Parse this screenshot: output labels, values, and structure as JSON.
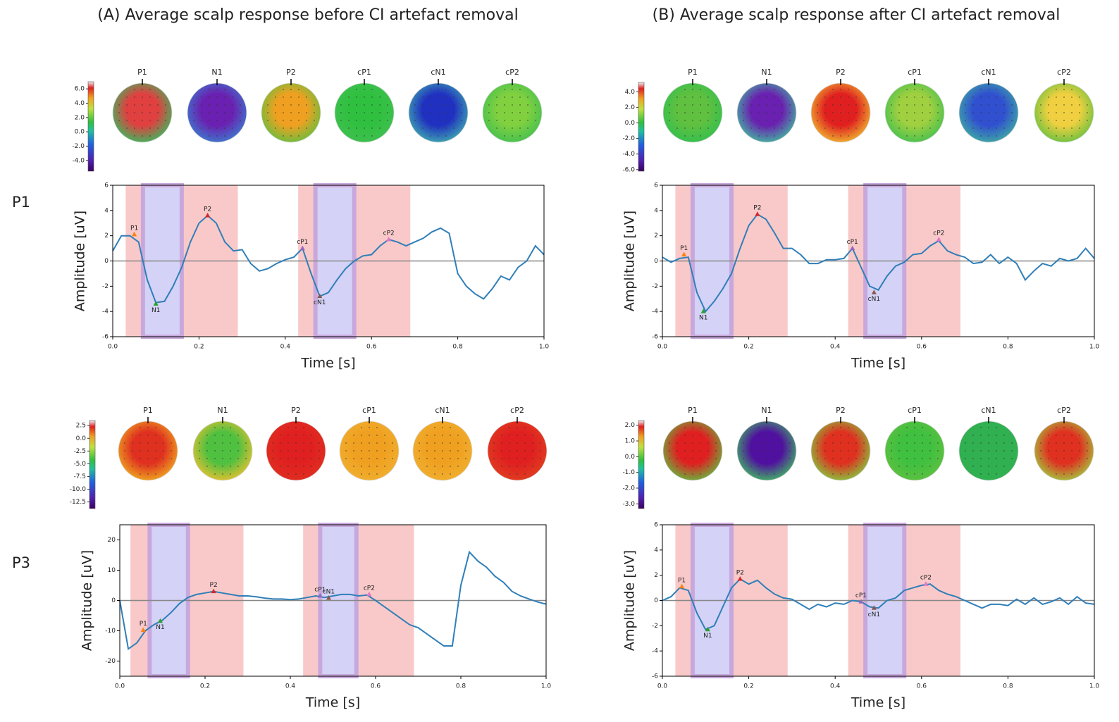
{
  "chart_data": [
    {
      "type": "line",
      "title": "(A) Average scalp response before CI artefact removal",
      "row_label": "P1",
      "topomap_labels": [
        "P1",
        "N1",
        "P2",
        "cP1",
        "cN1",
        "cP2"
      ],
      "topomap_colors": [
        [
          "#e04040",
          "#30c060"
        ],
        [
          "#6a20b0",
          "#3a80d0"
        ],
        [
          "#f0a020",
          "#60c040"
        ],
        [
          "#30c040",
          "#40c050"
        ],
        [
          "#2030c0",
          "#40b0b0"
        ],
        [
          "#80d040",
          "#40c050"
        ]
      ],
      "colorbar_lim": [
        -5.5,
        7
      ],
      "colorbar_ticks": [
        {
          "value": 6,
          "label": "6.0"
        },
        {
          "value": 4,
          "label": "4.0"
        },
        {
          "value": 2,
          "label": "2.0"
        },
        {
          "value": 0,
          "label": "0.0"
        },
        {
          "value": -2,
          "label": "-2.0"
        },
        {
          "value": -4,
          "label": "-4.0"
        }
      ],
      "xlabel": "Time [s]",
      "ylabel": "Amplitude [uV]",
      "xlim": [
        0,
        1
      ],
      "ylim": [
        -6,
        6
      ],
      "xticks": [
        {
          "value": 0,
          "label": "0.0"
        },
        {
          "value": 0.2,
          "label": "0.2"
        },
        {
          "value": 0.4,
          "label": "0.4"
        },
        {
          "value": 0.6,
          "label": "0.6"
        },
        {
          "value": 0.8,
          "label": "0.8"
        },
        {
          "value": 1,
          "label": "1.0"
        }
      ],
      "yticks": [
        -6,
        -4,
        -2,
        0,
        2,
        4,
        6
      ],
      "regions": [
        {
          "xlim": [
            0.03,
            0.29
          ],
          "color": "#f9c9c9"
        },
        {
          "xlim": [
            0.07,
            0.16
          ],
          "color": "#d4d2f6"
        },
        {
          "xlim": [
            0.43,
            0.69
          ],
          "color": "#f9c9c9"
        },
        {
          "xlim": [
            0.47,
            0.56
          ],
          "color": "#d4d2f6"
        }
      ],
      "x": [
        0,
        0.02,
        0.04,
        0.06,
        0.08,
        0.1,
        0.12,
        0.14,
        0.16,
        0.18,
        0.2,
        0.22,
        0.24,
        0.26,
        0.28,
        0.3,
        0.32,
        0.34,
        0.36,
        0.38,
        0.4,
        0.42,
        0.44,
        0.46,
        0.48,
        0.5,
        0.52,
        0.54,
        0.56,
        0.58,
        0.6,
        0.62,
        0.64,
        0.66,
        0.68,
        0.7,
        0.72,
        0.74,
        0.76,
        0.78,
        0.8,
        0.82,
        0.84,
        0.86,
        0.88,
        0.9,
        0.92,
        0.94,
        0.96,
        0.98,
        1
      ],
      "series": [
        {
          "color": "#2f7fb8",
          "values": [
            0.8,
            2.0,
            2.0,
            1.5,
            -1.5,
            -3.3,
            -3.2,
            -2.0,
            -0.5,
            1.5,
            3.0,
            3.6,
            3.0,
            1.5,
            0.8,
            0.9,
            -0.2,
            -0.8,
            -0.6,
            -0.2,
            0.1,
            0.3,
            1.0,
            -1.0,
            -2.8,
            -2.5,
            -1.5,
            -0.6,
            0,
            0.4,
            0.5,
            1.2,
            1.7,
            1.5,
            1.2,
            1.5,
            1.8,
            2.3,
            2.6,
            2.2,
            -1.0,
            -2.0,
            -2.6,
            -3.0,
            -2.2,
            -1.2,
            -1.5,
            -0.5,
            0,
            1.2,
            0.5
          ]
        }
      ],
      "peaks": [
        {
          "label": "P1",
          "x": 0.05,
          "y": 2.1,
          "color": "#ff7f0e"
        },
        {
          "label": "N1",
          "x": 0.1,
          "y": -3.4,
          "color": "#2ca02c"
        },
        {
          "label": "P2",
          "x": 0.22,
          "y": 3.6,
          "color": "#d62728"
        },
        {
          "label": "cP1",
          "x": 0.44,
          "y": 1.0,
          "color": "#9467bd"
        },
        {
          "label": "cN1",
          "x": 0.48,
          "y": -2.8,
          "color": "#8c564b"
        },
        {
          "label": "cP2",
          "x": 0.64,
          "y": 1.7,
          "color": "#e377c2"
        }
      ]
    },
    {
      "type": "line",
      "title": "(B) Average scalp response after CI artefact removal",
      "topomap_labels": [
        "P1",
        "N1",
        "P2",
        "cP1",
        "cN1",
        "cP2"
      ],
      "topomap_colors": [
        [
          "#60c040",
          "#30c050"
        ],
        [
          "#6a20b0",
          "#40c0a0"
        ],
        [
          "#e02020",
          "#f0c030"
        ],
        [
          "#a0d040",
          "#40c050"
        ],
        [
          "#3050d0",
          "#40b0a0"
        ],
        [
          "#f0d040",
          "#60c040"
        ]
      ],
      "colorbar_lim": [
        -6.2,
        5.2
      ],
      "colorbar_ticks": [
        {
          "value": 4,
          "label": "4.0"
        },
        {
          "value": 2,
          "label": "2.0"
        },
        {
          "value": 0,
          "label": "0.0"
        },
        {
          "value": -2,
          "label": "-2.0"
        },
        {
          "value": -4,
          "label": "-4.0"
        },
        {
          "value": -6,
          "label": "-6.0"
        }
      ],
      "xlabel": "Time [s]",
      "ylabel": "Amplitude [uV]",
      "xlim": [
        0,
        1
      ],
      "ylim": [
        -6,
        6
      ],
      "xticks": [
        {
          "value": 0,
          "label": "0.0"
        },
        {
          "value": 0.2,
          "label": "0.2"
        },
        {
          "value": 0.4,
          "label": "0.4"
        },
        {
          "value": 0.6,
          "label": "0.6"
        },
        {
          "value": 0.8,
          "label": "0.8"
        },
        {
          "value": 1,
          "label": "1.0"
        }
      ],
      "yticks": [
        -6,
        -4,
        -2,
        0,
        2,
        4,
        6
      ],
      "regions": [
        {
          "xlim": [
            0.03,
            0.29
          ],
          "color": "#f9c9c9"
        },
        {
          "xlim": [
            0.07,
            0.16
          ],
          "color": "#d4d2f6"
        },
        {
          "xlim": [
            0.43,
            0.69
          ],
          "color": "#f9c9c9"
        },
        {
          "xlim": [
            0.47,
            0.56
          ],
          "color": "#d4d2f6"
        }
      ],
      "x": [
        0,
        0.02,
        0.04,
        0.06,
        0.08,
        0.1,
        0.12,
        0.14,
        0.16,
        0.18,
        0.2,
        0.22,
        0.24,
        0.26,
        0.28,
        0.3,
        0.32,
        0.34,
        0.36,
        0.38,
        0.4,
        0.42,
        0.44,
        0.46,
        0.48,
        0.5,
        0.52,
        0.54,
        0.56,
        0.58,
        0.6,
        0.62,
        0.64,
        0.66,
        0.68,
        0.7,
        0.72,
        0.74,
        0.76,
        0.78,
        0.8,
        0.82,
        0.84,
        0.86,
        0.88,
        0.9,
        0.92,
        0.94,
        0.96,
        0.98,
        1
      ],
      "series": [
        {
          "color": "#2f7fb8",
          "values": [
            0.3,
            -0.1,
            0.2,
            0.3,
            -2.5,
            -4.0,
            -3.2,
            -2.2,
            -1.0,
            1.0,
            2.8,
            3.7,
            3.3,
            2.2,
            1.0,
            1.0,
            0.5,
            -0.2,
            -0.2,
            0.1,
            0.1,
            0.2,
            1.0,
            -0.5,
            -2.0,
            -2.3,
            -1.2,
            -0.4,
            -0.1,
            0.5,
            0.6,
            1.2,
            1.6,
            0.8,
            0.5,
            0.3,
            -0.2,
            -0.1,
            0.5,
            -0.2,
            0.3,
            -0.2,
            -1.5,
            -0.8,
            -0.2,
            -0.4,
            0.2,
            0,
            0.2,
            1.0,
            0.2
          ]
        }
      ],
      "peaks": [
        {
          "label": "P1",
          "x": 0.05,
          "y": 0.5,
          "color": "#ff7f0e"
        },
        {
          "label": "N1",
          "x": 0.095,
          "y": -4.0,
          "color": "#2ca02c"
        },
        {
          "label": "P2",
          "x": 0.22,
          "y": 3.7,
          "color": "#d62728"
        },
        {
          "label": "cP1",
          "x": 0.44,
          "y": 1.0,
          "color": "#9467bd"
        },
        {
          "label": "cN1",
          "x": 0.49,
          "y": -2.5,
          "color": "#8c564b"
        },
        {
          "label": "cP2",
          "x": 0.64,
          "y": 1.7,
          "color": "#e377c2"
        }
      ]
    },
    {
      "type": "line",
      "row_label": "P3",
      "topomap_labels": [
        "P1",
        "N1",
        "P2",
        "cP1",
        "cN1",
        "cP2"
      ],
      "topomap_colors": [
        [
          "#e03020",
          "#f0b020"
        ],
        [
          "#50c040",
          "#f0c030"
        ],
        [
          "#e02020",
          "#e03020"
        ],
        [
          "#f0a020",
          "#f0b030"
        ],
        [
          "#f0a020",
          "#f0b030"
        ],
        [
          "#e02020",
          "#e04020"
        ]
      ],
      "colorbar_lim": [
        -13.8,
        3.5
      ],
      "colorbar_ticks": [
        {
          "value": 2.5,
          "label": "2.5"
        },
        {
          "value": 0,
          "label": "0.0"
        },
        {
          "value": -2.5,
          "label": "-2.5"
        },
        {
          "value": -5,
          "label": "-5.0"
        },
        {
          "value": -7.5,
          "label": "-7.5"
        },
        {
          "value": -10,
          "label": "-10.0"
        },
        {
          "value": -12.5,
          "label": "-12.5"
        }
      ],
      "xlabel": "Time [s]",
      "ylabel": "Amplitude [uV]",
      "xlim": [
        0,
        1
      ],
      "ylim": [
        -25,
        25
      ],
      "xticks": [
        {
          "value": 0,
          "label": "0.0"
        },
        {
          "value": 0.2,
          "label": "0.2"
        },
        {
          "value": 0.4,
          "label": "0.4"
        },
        {
          "value": 0.6,
          "label": "0.6"
        },
        {
          "value": 0.8,
          "label": "0.8"
        },
        {
          "value": 1,
          "label": "1.0"
        }
      ],
      "yticks": [
        -20,
        -10,
        0,
        10,
        20
      ],
      "regions": [
        {
          "xlim": [
            0.025,
            0.29
          ],
          "color": "#f9c9c9"
        },
        {
          "xlim": [
            0.07,
            0.16
          ],
          "color": "#d4d2f6"
        },
        {
          "xlim": [
            0.43,
            0.69
          ],
          "color": "#f9c9c9"
        },
        {
          "xlim": [
            0.47,
            0.555
          ],
          "color": "#d4d2f6"
        }
      ],
      "x": [
        0,
        0.02,
        0.04,
        0.06,
        0.08,
        0.1,
        0.12,
        0.14,
        0.16,
        0.18,
        0.2,
        0.22,
        0.24,
        0.26,
        0.28,
        0.3,
        0.32,
        0.34,
        0.36,
        0.38,
        0.4,
        0.42,
        0.44,
        0.46,
        0.48,
        0.5,
        0.52,
        0.54,
        0.56,
        0.58,
        0.6,
        0.62,
        0.64,
        0.66,
        0.68,
        0.7,
        0.72,
        0.74,
        0.76,
        0.78,
        0.8,
        0.82,
        0.84,
        0.86,
        0.88,
        0.9,
        0.92,
        0.94,
        0.96,
        0.98,
        1
      ],
      "series": [
        {
          "color": "#2f7fb8",
          "values": [
            0,
            -16,
            -14,
            -10,
            -8,
            -6.5,
            -4,
            -1,
            1,
            2,
            2.5,
            3,
            2.5,
            2,
            1.5,
            1.5,
            1.2,
            0.8,
            0.5,
            0.5,
            0.3,
            0.5,
            1,
            1.5,
            1,
            1.5,
            2,
            2,
            1.5,
            1.8,
            0,
            -2,
            -4,
            -6,
            -8,
            -9,
            -11,
            -13,
            -15,
            -15,
            5,
            16,
            13,
            11,
            8,
            6,
            3,
            1.5,
            0.5,
            -0.5,
            -1.2
          ]
        }
      ],
      "peaks": [
        {
          "label": "P1",
          "x": 0.055,
          "y": -9.8,
          "color": "#ff7f0e"
        },
        {
          "label": "N1",
          "x": 0.095,
          "y": -6.8,
          "color": "#2ca02c"
        },
        {
          "label": "P2",
          "x": 0.22,
          "y": 3.0,
          "color": "#d62728"
        },
        {
          "label": "cP1",
          "x": 0.47,
          "y": 1.5,
          "color": "#9467bd"
        },
        {
          "label": "cN1",
          "x": 0.49,
          "y": 0.8,
          "color": "#8c564b"
        },
        {
          "label": "cP2",
          "x": 0.585,
          "y": 2.0,
          "color": "#e377c2"
        }
      ]
    },
    {
      "type": "line",
      "topomap_labels": [
        "P1",
        "N1",
        "P2",
        "cP1",
        "cN1",
        "cP2"
      ],
      "topomap_colors": [
        [
          "#e02020",
          "#60c040"
        ],
        [
          "#5010a0",
          "#40c060"
        ],
        [
          "#e03020",
          "#80d040"
        ],
        [
          "#40c040",
          "#60c040"
        ],
        [
          "#30b050",
          "#30b050"
        ],
        [
          "#e03020",
          "#a0d040"
        ]
      ],
      "colorbar_lim": [
        -3.3,
        2.3
      ],
      "colorbar_ticks": [
        {
          "value": 2,
          "label": "2.0"
        },
        {
          "value": 1,
          "label": "1.0"
        },
        {
          "value": 0,
          "label": "0.0"
        },
        {
          "value": -1,
          "label": "-1.0"
        },
        {
          "value": -2,
          "label": "-2.0"
        },
        {
          "value": -3,
          "label": "-3.0"
        }
      ],
      "xlabel": "Time [s]",
      "ylabel": "Amplitude [uV]",
      "xlim": [
        0,
        1
      ],
      "ylim": [
        -6,
        6
      ],
      "xticks": [
        {
          "value": 0,
          "label": "0.0"
        },
        {
          "value": 0.2,
          "label": "0.2"
        },
        {
          "value": 0.4,
          "label": "0.4"
        },
        {
          "value": 0.6,
          "label": "0.6"
        },
        {
          "value": 0.8,
          "label": "0.8"
        },
        {
          "value": 1,
          "label": "1.0"
        }
      ],
      "yticks": [
        -6,
        -4,
        -2,
        0,
        2,
        4,
        6
      ],
      "regions": [
        {
          "xlim": [
            0.03,
            0.29
          ],
          "color": "#f9c9c9"
        },
        {
          "xlim": [
            0.07,
            0.16
          ],
          "color": "#d4d2f6"
        },
        {
          "xlim": [
            0.43,
            0.69
          ],
          "color": "#f9c9c9"
        },
        {
          "xlim": [
            0.47,
            0.56
          ],
          "color": "#d4d2f6"
        }
      ],
      "x": [
        0,
        0.02,
        0.04,
        0.06,
        0.08,
        0.1,
        0.12,
        0.14,
        0.16,
        0.18,
        0.2,
        0.22,
        0.24,
        0.26,
        0.28,
        0.3,
        0.32,
        0.34,
        0.36,
        0.38,
        0.4,
        0.42,
        0.44,
        0.46,
        0.48,
        0.5,
        0.52,
        0.54,
        0.56,
        0.58,
        0.6,
        0.62,
        0.64,
        0.66,
        0.68,
        0.7,
        0.72,
        0.74,
        0.76,
        0.78,
        0.8,
        0.82,
        0.84,
        0.86,
        0.88,
        0.9,
        0.92,
        0.94,
        0.96,
        0.98,
        1
      ],
      "series": [
        {
          "color": "#2f7fb8",
          "values": [
            0,
            0.3,
            1.0,
            0.8,
            -1.0,
            -2.3,
            -2.0,
            -0.5,
            1.0,
            1.7,
            1.3,
            1.6,
            1.0,
            0.5,
            0.2,
            0.1,
            -0.3,
            -0.7,
            -0.3,
            -0.5,
            -0.2,
            -0.3,
            0,
            -0.1,
            -0.5,
            -0.6,
            0,
            0.2,
            0.8,
            1.0,
            1.2,
            1.3,
            0.8,
            0.5,
            0.3,
            0,
            -0.3,
            -0.6,
            -0.3,
            -0.3,
            -0.4,
            0.1,
            -0.3,
            0.2,
            -0.3,
            -0.1,
            0.2,
            -0.3,
            0.3,
            -0.2,
            -0.3
          ]
        }
      ],
      "peaks": [
        {
          "label": "P1",
          "x": 0.045,
          "y": 1.1,
          "color": "#ff7f0e"
        },
        {
          "label": "N1",
          "x": 0.105,
          "y": -2.3,
          "color": "#2ca02c"
        },
        {
          "label": "P2",
          "x": 0.18,
          "y": 1.7,
          "color": "#d62728"
        },
        {
          "label": "cP1",
          "x": 0.46,
          "y": -0.1,
          "color": "#9467bd"
        },
        {
          "label": "cN1",
          "x": 0.49,
          "y": -0.6,
          "color": "#8c564b"
        },
        {
          "label": "cP2",
          "x": 0.61,
          "y": 1.3,
          "color": "#e377c2"
        }
      ]
    }
  ]
}
